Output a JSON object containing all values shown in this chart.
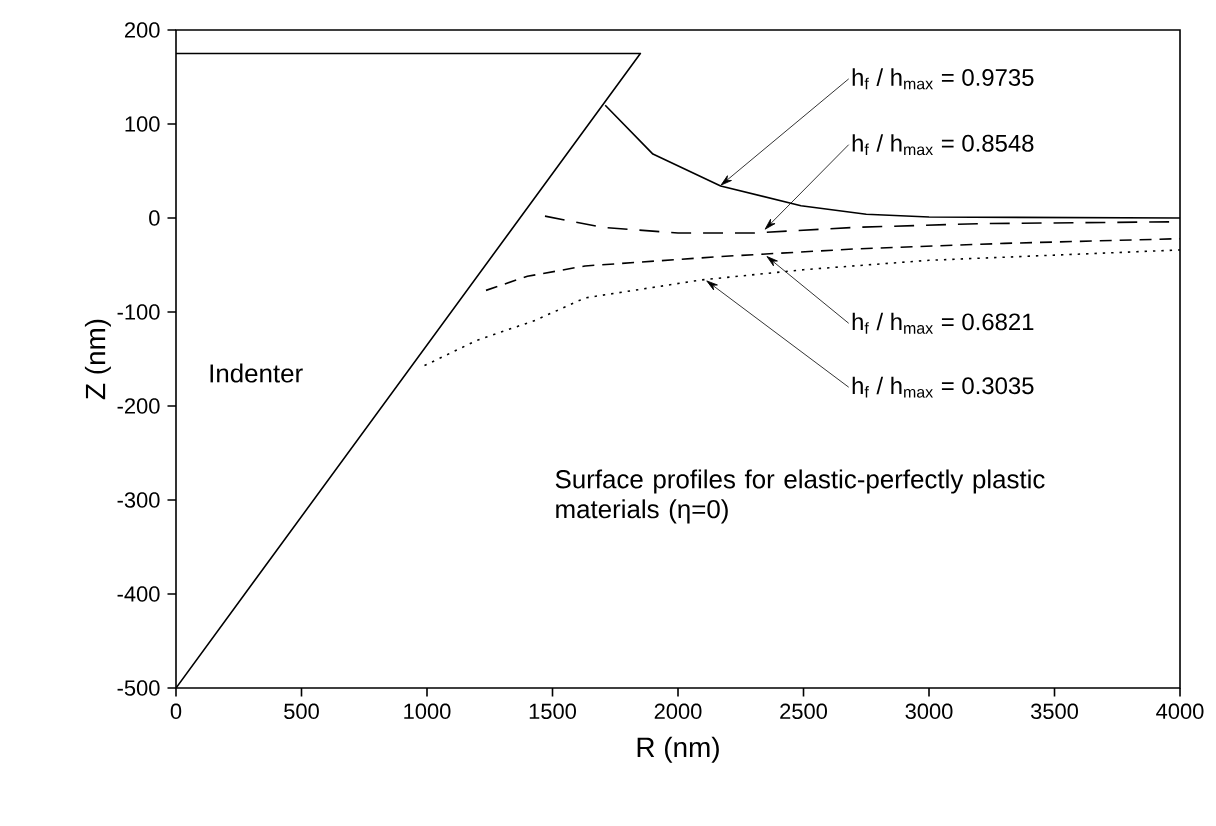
{
  "chart_data": {
    "type": "line",
    "xlabel": "R (nm)",
    "ylabel": "Z (nm)",
    "xlim": [
      0,
      4000
    ],
    "ylim": [
      -500,
      200
    ],
    "xticks": [
      0,
      500,
      1000,
      1500,
      2000,
      2500,
      3000,
      3500,
      4000
    ],
    "yticks": [
      -500,
      -400,
      -300,
      -200,
      -100,
      0,
      100,
      200
    ],
    "grid": false,
    "legend": false,
    "marker": "none",
    "series": [
      {
        "name": "Indenter",
        "color": "#000000",
        "line_style": "solid",
        "x": [
          0,
          1850,
          0
        ],
        "values": [
          -500,
          175,
          175
        ]
      },
      {
        "color": "#000000",
        "line_style": "solid",
        "x": [
          1710,
          1900,
          2170,
          2490,
          2750,
          3000,
          4000
        ],
        "values": [
          120,
          68,
          34,
          13,
          4,
          1,
          0
        ]
      },
      {
        "color": "#000000",
        "line_style": "dashed",
        "x": [
          1470,
          1700,
          2000,
          2300,
          2700,
          3200,
          4000
        ],
        "values": [
          2,
          -10,
          -16,
          -16,
          -10,
          -6,
          -4
        ]
      },
      {
        "color": "#000000",
        "line_style": "dashed",
        "x": [
          1235,
          1400,
          1630,
          2170,
          2700,
          3300,
          4000
        ],
        "values": [
          -77,
          -62,
          -51,
          -41,
          -33,
          -27,
          -22
        ]
      },
      {
        "color": "#000000",
        "line_style": "dotted",
        "x": [
          990,
          1200,
          1430,
          1630,
          2090,
          2500,
          3000,
          4000
        ],
        "values": [
          -157,
          -130,
          -109,
          -85,
          -66,
          -55,
          -45,
          -34
        ]
      }
    ],
    "annotations": [
      {
        "text": "h$_{f}$ / h$_{max}$ = 0.9735",
        "x": 2167,
        "y": 34
      },
      {
        "text": "h$_{f}$ / h$_{max}$ = 0.8548",
        "x": 2343,
        "y": -13
      },
      {
        "text": "h$_{f}$ / h$_{max}$ = 0.6821",
        "x": 2350,
        "y": -40
      },
      {
        "text": "h$_{f}$ / h$_{max}$ = 0.3035",
        "x": 2110,
        "y": -66
      },
      "Surface profiles for elastic-perfectly plastic materials (η=0)"
    ]
  }
}
